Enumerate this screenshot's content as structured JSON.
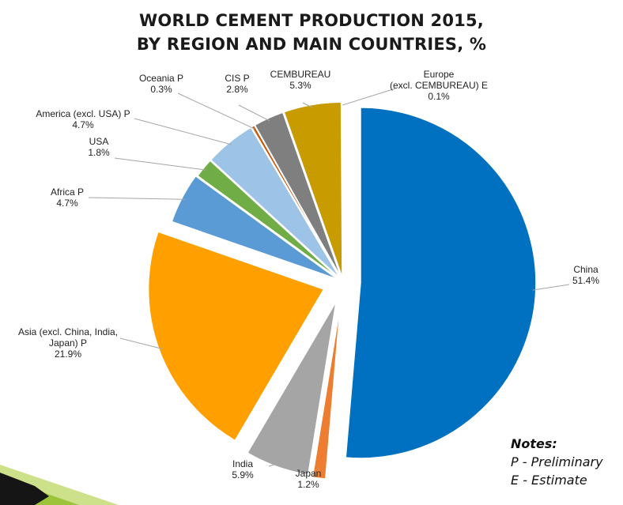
{
  "title_line1": "WORLD CEMENT PRODUCTION 2015,",
  "title_line2": "BY REGION AND MAIN COUNTRIES, %",
  "notes": {
    "heading": "Notes:",
    "line1": "P - Preliminary",
    "line2": "E - Estimate"
  },
  "chart_data": {
    "type": "pie",
    "title": "WORLD CEMENT PRODUCTION 2015, BY REGION AND MAIN COUNTRIES, %",
    "slices": [
      {
        "label": [
          "China"
        ],
        "value_text": "51.4%",
        "value": 51.4,
        "color": "#0070c0"
      },
      {
        "label": [
          "Japan"
        ],
        "value_text": "1.2%",
        "value": 1.2,
        "color": "#ed7d31"
      },
      {
        "label": [
          "India"
        ],
        "value_text": "5.9%",
        "value": 5.9,
        "color": "#a5a5a5"
      },
      {
        "label": [
          "Asia (excl. China, India,",
          "Japan) P"
        ],
        "value_text": "21.9%",
        "value": 21.9,
        "color": "#ffa000"
      },
      {
        "label": [
          "Africa P"
        ],
        "value_text": "4.7%",
        "value": 4.7,
        "color": "#5b9bd5"
      },
      {
        "label": [
          "USA"
        ],
        "value_text": "1.8%",
        "value": 1.8,
        "color": "#70ad47"
      },
      {
        "label": [
          "America (excl. USA) P"
        ],
        "value_text": "4.7%",
        "value": 4.7,
        "color": "#9dc3e6"
      },
      {
        "label": [
          "Oceania P"
        ],
        "value_text": "0.3%",
        "value": 0.3,
        "color": "#c55a11"
      },
      {
        "label": [
          "CIS P"
        ],
        "value_text": "2.8%",
        "value": 2.8,
        "color": "#7f7f7f"
      },
      {
        "label": [
          "CEMBUREAU"
        ],
        "value_text": "5.3%",
        "value": 5.3,
        "color": "#c89b00"
      },
      {
        "label": [
          "Europe",
          "(excl. CEMBUREAU)  E"
        ],
        "value_text": "0.1%",
        "value": 0.1,
        "color": "#4fa3c7"
      }
    ]
  }
}
